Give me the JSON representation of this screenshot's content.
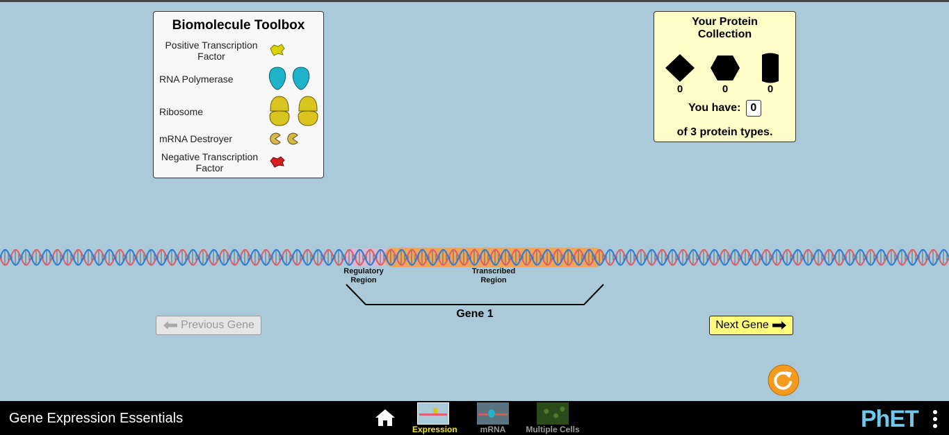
{
  "toolbox": {
    "title": "Biomolecule Toolbox",
    "items": [
      {
        "label": "Positive Transcription Factor",
        "icon": "positive-transcription-factor-icon",
        "color": "#d9d400"
      },
      {
        "label": "RNA Polymerase",
        "icon": "rna-polymerase-icon",
        "color": "#1fb3c9"
      },
      {
        "label": "Ribosome",
        "icon": "ribosome-icon",
        "color": "#d9c420"
      },
      {
        "label": "mRNA Destroyer",
        "icon": "mrna-destroyer-icon",
        "color": "#d9b84a"
      },
      {
        "label": "Negative Transcription Factor",
        "icon": "negative-transcription-factor-icon",
        "color": "#d62020"
      }
    ]
  },
  "collection": {
    "title_line1": "Your Protein",
    "title_line2": "Collection",
    "proteins": [
      {
        "shape": "diamond-protein-icon",
        "count": "0"
      },
      {
        "shape": "hexagon-protein-icon",
        "count": "0"
      },
      {
        "shape": "cylinder-protein-icon",
        "count": "0"
      }
    ],
    "you_have_label": "You have:",
    "you_have_value": "0",
    "of_types_label": "of 3 protein types."
  },
  "dna": {
    "regulatory_line1": "Regulatory",
    "regulatory_line2": "Region",
    "transcribed_line1": "Transcribed",
    "transcribed_line2": "Region",
    "gene_label": "Gene 1",
    "colors": {
      "strand_a": "#e0606a",
      "strand_b": "#2f7fd6",
      "regulatory": "#e3b6cf",
      "transcribed": "#f6a24a"
    }
  },
  "nav": {
    "previous_label": "Previous Gene",
    "next_label": "Next Gene"
  },
  "navbar": {
    "app_title": "Gene Expression Essentials",
    "tabs": [
      {
        "label": "Expression",
        "active": true
      },
      {
        "label": "mRNA",
        "active": false
      },
      {
        "label": "Multiple Cells",
        "active": false
      }
    ],
    "logo": "PhET"
  }
}
